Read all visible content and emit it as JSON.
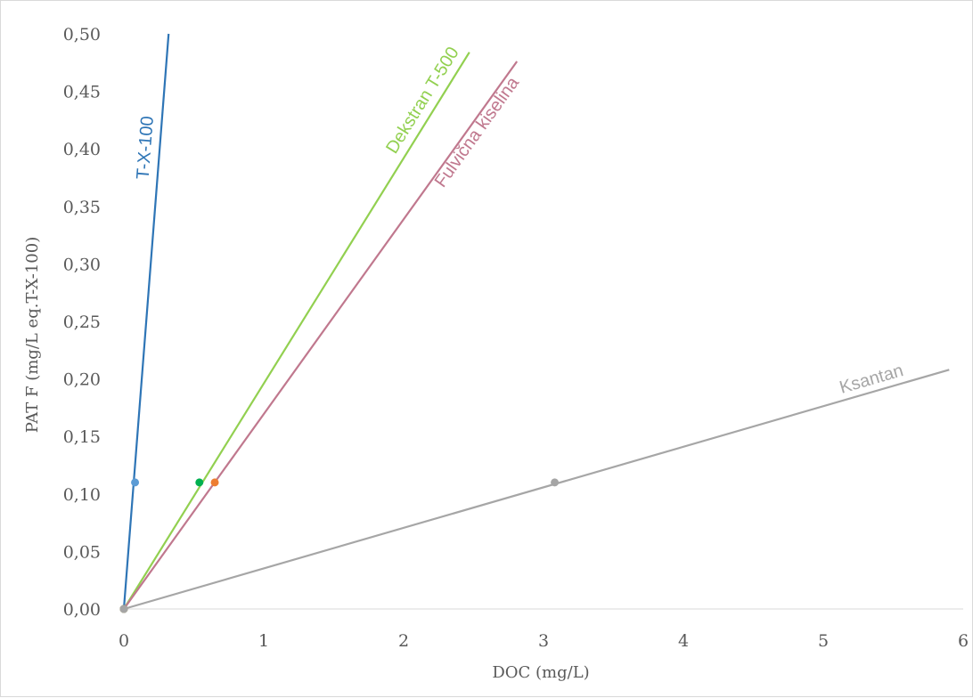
{
  "chart_data": {
    "type": "line",
    "xlabel": "DOC (mg/L)",
    "ylabel": "PAT F (mg/L eq.T-X-100)",
    "xlim": [
      0,
      6
    ],
    "ylim": [
      0,
      0.5
    ],
    "x_ticks": [
      "0",
      "1",
      "2",
      "3",
      "4",
      "5",
      "6"
    ],
    "y_ticks": [
      "0,00",
      "0,05",
      "0,10",
      "0,15",
      "0,20",
      "0,25",
      "0,30",
      "0,35",
      "0,40",
      "0,45",
      "0,50"
    ],
    "grid": false,
    "series": [
      {
        "name": "T-X-100",
        "color": "#2e75b6",
        "marker_color": "#5b9bd5",
        "points": [
          {
            "x": 0,
            "y": 0
          },
          {
            "x": 0.08,
            "y": 0.11
          }
        ],
        "trend_line": [
          {
            "x": 0,
            "y": 0
          },
          {
            "x": 0.32,
            "y": 0.5
          }
        ]
      },
      {
        "name": "Dekstran T-500",
        "color": "#92d050",
        "marker_color": "#00b050",
        "points": [
          {
            "x": 0,
            "y": 0
          },
          {
            "x": 0.54,
            "y": 0.11
          }
        ],
        "trend_line": [
          {
            "x": 0,
            "y": 0
          },
          {
            "x": 2.47,
            "y": 0.484
          }
        ]
      },
      {
        "name": "Fulvična kiselina",
        "color": "#c0788e",
        "marker_color": "#ed7d31",
        "points": [
          {
            "x": 0,
            "y": 0
          },
          {
            "x": 0.65,
            "y": 0.11
          }
        ],
        "trend_line": [
          {
            "x": 0,
            "y": 0
          },
          {
            "x": 2.81,
            "y": 0.476
          }
        ]
      },
      {
        "name": "Ksantan",
        "color": "#a6a6a6",
        "marker_color": "#a5a5a5",
        "points": [
          {
            "x": 0,
            "y": 0
          },
          {
            "x": 3.08,
            "y": 0.11
          }
        ],
        "trend_line": [
          {
            "x": 0,
            "y": 0
          },
          {
            "x": 5.9,
            "y": 0.208
          }
        ]
      }
    ]
  }
}
